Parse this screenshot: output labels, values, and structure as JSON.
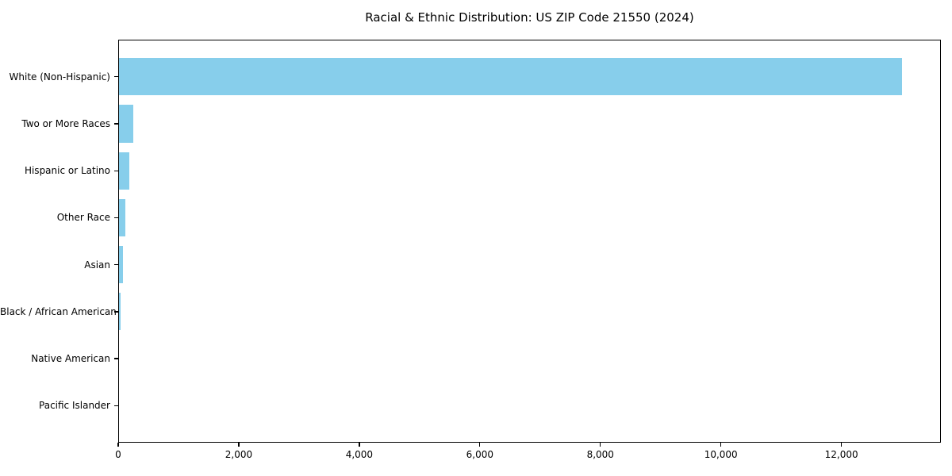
{
  "title": "Racial & Ethnic Distribution: US ZIP Code 21550 (2024)",
  "chart_data": {
    "type": "bar",
    "orientation": "horizontal",
    "title": "Racial & Ethnic Distribution: US ZIP Code 21550 (2024)",
    "categories": [
      "White (Non-Hispanic)",
      "Two or More Races",
      "Hispanic or Latino",
      "Other Race",
      "Asian",
      "Black / African American",
      "Native American",
      "Pacific Islander"
    ],
    "values": [
      13000,
      250,
      190,
      125,
      80,
      40,
      15,
      0
    ],
    "xlabel": "",
    "ylabel": "",
    "xlim": [
      0,
      13650
    ],
    "xticks": [
      0,
      2000,
      4000,
      6000,
      8000,
      10000,
      12000
    ],
    "xtick_labels": [
      "0",
      "2,000",
      "4,000",
      "6,000",
      "8,000",
      "10,000",
      "12,000"
    ],
    "bar_color": "#87CEEB",
    "axis_color": "#000000",
    "text_color": "#000000",
    "bar_height_fraction": 0.8,
    "grid": false
  }
}
